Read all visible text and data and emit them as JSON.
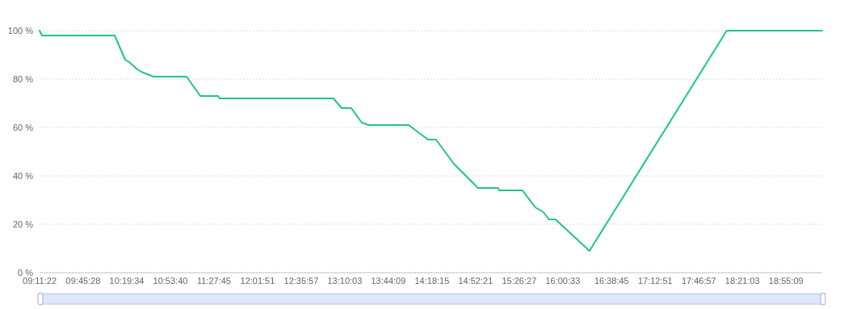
{
  "chart_data": {
    "type": "line",
    "x": [
      9.189,
      9.221,
      10.168,
      10.305,
      10.358,
      10.463,
      10.516,
      10.673,
      11.105,
      11.284,
      11.515,
      11.536,
      13.02,
      13.126,
      13.252,
      13.389,
      13.483,
      13.999,
      14.252,
      14.357,
      14.589,
      14.904,
      15.167,
      15.178,
      15.483,
      15.651,
      15.757,
      15.83,
      15.915,
      16.357,
      18.146,
      19.388
    ],
    "series": [
      {
        "color": "#1fc38d",
        "values": [
          100,
          98,
          98,
          88,
          87,
          84,
          83,
          81,
          81,
          73,
          73,
          72,
          72,
          68,
          68,
          62,
          61,
          61,
          55,
          55,
          45,
          35,
          35,
          34,
          34,
          27,
          25,
          22,
          22,
          9,
          100,
          100
        ]
      }
    ],
    "xlim": [
      9.189,
      19.39
    ],
    "xticks": [
      {
        "value": 9.18944,
        "label": "09:11:22"
      },
      {
        "value": 9.75778,
        "label": "09:45:28"
      },
      {
        "value": 10.32611,
        "label": "10:19:34"
      },
      {
        "value": 10.89444,
        "label": "10:53:40"
      },
      {
        "value": 11.4625,
        "label": "11:27:45"
      },
      {
        "value": 12.03083,
        "label": "12:01:51"
      },
      {
        "value": 12.59917,
        "label": "12:35:57"
      },
      {
        "value": 13.1675,
        "label": "13:10:03"
      },
      {
        "value": 13.73583,
        "label": "13:44:09"
      },
      {
        "value": 14.30417,
        "label": "14:18:15"
      },
      {
        "value": 14.8725,
        "label": "14:52:21"
      },
      {
        "value": 15.44083,
        "label": "15:26:27"
      },
      {
        "value": 16.00917,
        "label": "16:00:33"
      },
      {
        "value": 16.64583,
        "label": "16:38:45"
      },
      {
        "value": 17.21417,
        "label": "17:12:51"
      },
      {
        "value": 17.7825,
        "label": "17:46:57"
      },
      {
        "value": 18.35083,
        "label": "18:21:03"
      },
      {
        "value": 18.91917,
        "label": "18:55:09"
      }
    ],
    "ylim": [
      0,
      100
    ],
    "yticks": [
      {
        "value": 0,
        "label": "0 %"
      },
      {
        "value": 20,
        "label": "20 %"
      },
      {
        "value": 40,
        "label": "40 %"
      },
      {
        "value": 60,
        "label": "60 %"
      },
      {
        "value": 80,
        "label": "80 %"
      },
      {
        "value": 100,
        "label": "100 %"
      }
    ],
    "grid": "y",
    "marker": "none",
    "line_style": "solid"
  }
}
